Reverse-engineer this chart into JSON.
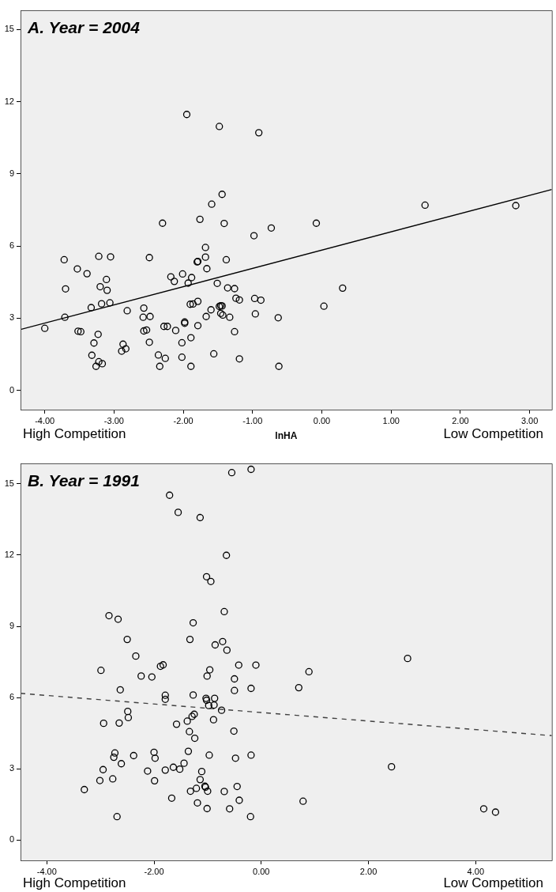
{
  "chart_data": [
    {
      "type": "scatter",
      "title": "A. Year = 2004",
      "xlabel": "lnHA",
      "annotations": [
        "High Competition",
        "Low Competition"
      ],
      "xlim": [
        -4.35,
        3.32
      ],
      "ylim": [
        -0.8,
        15.8
      ],
      "xticks": [
        {
          "value": -4,
          "label": "-4.00"
        },
        {
          "value": -3,
          "label": "-3.00"
        },
        {
          "value": -2,
          "label": "-2.00"
        },
        {
          "value": -1,
          "label": "-1.00"
        },
        {
          "value": 0,
          "label": "0.00"
        },
        {
          "value": 1,
          "label": "1.00"
        },
        {
          "value": 2,
          "label": "2.00"
        },
        {
          "value": 3,
          "label": "3.00"
        }
      ],
      "yticks": [
        0,
        3,
        6,
        9,
        12,
        15
      ],
      "grid": false,
      "legend": false,
      "marker": "circle",
      "series": [
        {
          "color": "#000000",
          "x": [
            -4.0,
            -3.72,
            -3.7,
            -3.71,
            -3.53,
            -3.52,
            -3.48,
            -3.39,
            -3.33,
            -3.32,
            -3.29,
            -3.23,
            -3.22,
            -3.2,
            -3.22,
            -3.26,
            -3.17,
            -3.18,
            -3.11,
            -3.1,
            -3.06,
            -3.05,
            -2.89,
            -2.87,
            -2.83,
            -2.81,
            -2.57,
            -2.58,
            -2.57,
            -2.53,
            -2.49,
            -2.48,
            -2.49,
            -2.36,
            -2.34,
            -2.3,
            -2.28,
            -2.26,
            -2.23,
            -2.18,
            -2.13,
            -2.11,
            -2.02,
            -2.02,
            -2.01,
            -1.98,
            -1.98,
            -1.95,
            -1.93,
            -1.9,
            -1.89,
            -1.89,
            -1.88,
            -1.86,
            -1.8,
            -1.79,
            -1.79,
            -1.79,
            -1.76,
            -1.68,
            -1.68,
            -1.67,
            -1.66,
            -1.6,
            -1.59,
            -1.56,
            -1.51,
            -1.48,
            -1.48,
            -1.46,
            -1.44,
            -1.46,
            -1.43,
            -1.44,
            -1.41,
            -1.38,
            -1.36,
            -1.33,
            -1.26,
            -1.24,
            -1.26,
            -1.19,
            -1.19,
            -0.98,
            -0.97,
            -0.96,
            -0.91,
            -0.88,
            -0.73,
            -0.63,
            -0.62,
            -0.08,
            0.03,
            0.3,
            1.49,
            2.8
          ],
          "values": [
            2.58,
            5.43,
            4.22,
            3.04,
            5.05,
            2.46,
            2.44,
            4.85,
            3.44,
            1.46,
            1.97,
            2.33,
            5.57,
            4.31,
            1.19,
            1.0,
            1.11,
            3.6,
            4.61,
            4.16,
            3.64,
            5.55,
            1.63,
            1.92,
            1.73,
            3.31,
            3.42,
            3.04,
            2.47,
            2.51,
            5.52,
            3.07,
            2.0,
            1.47,
            1.0,
            6.95,
            2.66,
            1.33,
            2.66,
            4.72,
            4.53,
            2.49,
            1.38,
            1.98,
            4.84,
            2.84,
            2.79,
            11.47,
            4.46,
            3.58,
            2.19,
            1.0,
            4.69,
            3.59,
            5.34,
            5.36,
            3.7,
            2.69,
            7.11,
            5.94,
            5.54,
            3.07,
            5.06,
            3.35,
            7.74,
            1.52,
            4.45,
            10.97,
            3.49,
            3.52,
            3.51,
            3.2,
            3.13,
            8.15,
            6.94,
            5.43,
            4.26,
            3.04,
            4.23,
            3.83,
            2.44,
            3.76,
            1.31,
            6.43,
            3.82,
            3.18,
            10.71,
            3.75,
            6.75,
            3.02,
            1.0,
            6.95,
            3.5,
            4.25,
            7.7,
            7.68
          ]
        },
        {
          "type": "line",
          "color": "#000000",
          "line_style": "solid",
          "marker": "none",
          "x": [
            -4.35,
            3.32
          ],
          "values": [
            2.53,
            8.35
          ]
        }
      ]
    },
    {
      "type": "scatter",
      "title": "B. Year = 1991",
      "annotations": [
        "High Competition",
        "Low Competition"
      ],
      "xlim": [
        -4.49,
        5.42
      ],
      "ylim": [
        -0.85,
        15.86
      ],
      "xticks": [
        {
          "value": -4,
          "label": "-4.00"
        },
        {
          "value": -2,
          "label": "-2.00"
        },
        {
          "value": 0,
          "label": "0.00"
        },
        {
          "value": 2,
          "label": "2.00"
        },
        {
          "value": 4,
          "label": "4.00"
        }
      ],
      "yticks": [
        0,
        3,
        6,
        9,
        12,
        15
      ],
      "grid": false,
      "legend": false,
      "marker": "circle",
      "series": [
        {
          "color": "#000000",
          "x": [
            -0.55,
            -0.19,
            -1.71,
            -1.55,
            -1.14,
            -0.65,
            -1.02,
            -0.94,
            -0.69,
            -2.84,
            -2.67,
            -1.27,
            -2.5,
            -1.33,
            -0.72,
            -0.86,
            -0.64,
            -2.34,
            -1.88,
            -1.83,
            -0.42,
            -0.1,
            -2.99,
            -0.96,
            -2.24,
            -2.04,
            -1.01,
            -0.5,
            -2.63,
            -0.5,
            -0.19,
            -1.79,
            -1.79,
            -1.27,
            -1.03,
            -1.02,
            -0.87,
            -0.98,
            -0.88,
            -0.74,
            -2.49,
            -2.48,
            -1.25,
            -1.29,
            -1.38,
            -0.89,
            -2.94,
            -2.65,
            -1.58,
            -1.34,
            -0.51,
            -1.24,
            -2.73,
            -2.75,
            -2.38,
            -2.0,
            -1.98,
            -1.36,
            -0.97,
            -0.48,
            -0.19,
            -2.61,
            -2.95,
            -1.44,
            -1.64,
            -1.52,
            -1.79,
            -2.12,
            -1.11,
            -3.01,
            -2.77,
            -1.99,
            -1.14,
            -1.05,
            -1.04,
            -0.45,
            -3.3,
            -1.32,
            -1.21,
            -1.0,
            -0.69,
            -1.67,
            -0.41,
            -1.19,
            -1.01,
            -0.59,
            -2.69,
            -0.2,
            2.73,
            0.89,
            0.7,
            2.43,
            0.78,
            4.15,
            4.37
          ],
          "values": [
            15.47,
            15.61,
            14.52,
            13.8,
            13.58,
            11.99,
            11.09,
            10.89,
            9.62,
            9.45,
            9.3,
            9.15,
            8.45,
            8.45,
            8.36,
            8.22,
            8.0,
            7.75,
            7.32,
            7.38,
            7.37,
            7.37,
            7.15,
            7.17,
            6.91,
            6.87,
            6.91,
            6.79,
            6.33,
            6.3,
            6.39,
            6.1,
            5.93,
            6.11,
            5.97,
            5.89,
            5.97,
            5.67,
            5.69,
            5.47,
            5.42,
            5.16,
            5.3,
            5.21,
            5.01,
            5.07,
            4.92,
            4.93,
            4.88,
            4.57,
            4.59,
            4.29,
            3.67,
            3.49,
            3.56,
            3.7,
            3.45,
            3.74,
            3.58,
            3.45,
            3.58,
            3.22,
            2.97,
            3.24,
            3.07,
            2.99,
            2.95,
            2.91,
            2.89,
            2.51,
            2.58,
            2.5,
            2.55,
            2.27,
            2.23,
            2.26,
            2.13,
            2.06,
            2.18,
            2.06,
            2.05,
            1.77,
            1.68,
            1.57,
            1.33,
            1.32,
            0.99,
            0.99,
            7.65,
            7.09,
            6.42,
            3.09,
            1.64,
            1.32,
            1.18
          ]
        },
        {
          "type": "line",
          "color": "#404040",
          "line_style": "dashed",
          "marker": "none",
          "x": [
            -4.49,
            5.42
          ],
          "values": [
            6.18,
            4.4
          ]
        }
      ]
    }
  ]
}
